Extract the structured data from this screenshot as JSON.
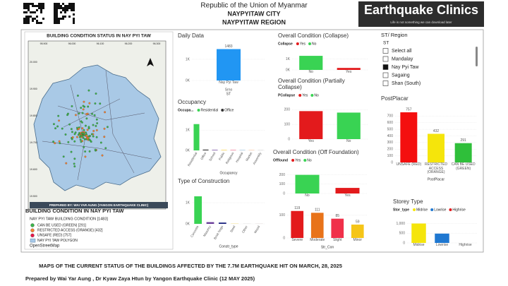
{
  "header": {
    "line1": "Republic of the Union of Myanmar",
    "line2": "NAYPYITAW CITY",
    "line3": "NAYPYITAW REGION"
  },
  "brand": {
    "title": "Earthquake Clinics",
    "tagline": "Life is not something we can download later"
  },
  "map": {
    "title": "BUILDING CONDITION STATUS IN NAY PYI TAW",
    "credit": "PREPARED BY: WAI YAR AUNG (YANGON EARTHQUAKE CLINIC)",
    "lon_labels": [
      "95.900",
      "96.000",
      "96.100",
      "96.200",
      "96.300"
    ],
    "lat_labels": [
      "20.000",
      "19.900",
      "19.800",
      "19.700",
      "19.600",
      "19.500"
    ]
  },
  "legend": {
    "title": "BUILDING CONDITION IN NAY PYI TAW",
    "layer": "NAY PYI TAW BUILDING CONDITION [1483]",
    "items": [
      {
        "label": "CAN BE USED (GREEN) [291]",
        "color": "#3cb44b"
      },
      {
        "label": "RESTRICTED ACCESS (ORANGE) [432]",
        "color": "#f58231"
      },
      {
        "label": "UNSAFE (RED) [757]",
        "color": "#e6194b"
      },
      {
        "label": "NAY PYI TAW POLYGON",
        "color": "#a6c8e8"
      }
    ],
    "basemap": "OpenStreetMap"
  },
  "charts": [
    {
      "type": "bar",
      "title": "Daily Data",
      "categories": [
        "Nay Pyi Taw"
      ],
      "xsub": "Srno",
      "xlabel": "ST",
      "values": [
        1483
      ],
      "colors": [
        "#2196f3"
      ],
      "data_labels": true,
      "ylim": [
        0,
        1600
      ],
      "yticks": [
        {
          "value": 0,
          "label": "0K"
        },
        {
          "value": 1000,
          "label": "1K"
        }
      ]
    },
    {
      "type": "bar",
      "title": "Occupancy",
      "legend": {
        "title": "Occupa...",
        "items": [
          {
            "name": "Residential",
            "color": "#39d353"
          },
          {
            "name": "Office",
            "color": "#333333"
          }
        ]
      },
      "categories": [
        "Residential",
        "Office",
        "School",
        "Public",
        "Religious",
        "Hospital",
        "Market",
        "Assembly"
      ],
      "values": [
        1300,
        40,
        25,
        20,
        15,
        10,
        10,
        8
      ],
      "colors": [
        "#39d353",
        "#333333",
        "#6a3d9a",
        "#f5c518",
        "#e6194b",
        "#1f78b4",
        "#f58231",
        "#999999"
      ],
      "rotate_labels": true,
      "xlabel": "Occupancy",
      "ylim": [
        0,
        1500
      ],
      "yticks": [
        {
          "value": 0,
          "label": "0K"
        },
        {
          "value": 1000,
          "label": "1K"
        }
      ]
    },
    {
      "type": "bar",
      "title": "Type of Construction",
      "categories": [
        "Concrete",
        "Masonry",
        "Brick Nogs",
        "Steel",
        "Other",
        "Wood"
      ],
      "values": [
        1300,
        80,
        60,
        8,
        4,
        3
      ],
      "colors": [
        "#39d353",
        "#6a3d9a",
        "#1a237e",
        "#f5c518",
        "#999999",
        "#8d6e63"
      ],
      "rotate_labels": true,
      "xlabel": "Constr_type",
      "ylim": [
        0,
        1500
      ],
      "yticks": [
        {
          "value": 0,
          "label": "0K"
        },
        {
          "value": 1000,
          "label": "1K"
        }
      ]
    },
    {
      "type": "bar",
      "title": "Overall Condition (Collapse)",
      "legend": {
        "title": "Collapse",
        "items": [
          {
            "name": "Yes",
            "color": "#e31a1c"
          },
          {
            "name": "No",
            "color": "#39d353"
          }
        ]
      },
      "categories": [
        "No",
        "Yes"
      ],
      "values": [
        1300,
        183
      ],
      "colors": [
        "#39d353",
        "#e31a1c"
      ],
      "ylim": [
        0,
        1500
      ],
      "yticks": [
        {
          "value": 0,
          "label": "0K"
        },
        {
          "value": 1000,
          "label": "1K"
        }
      ]
    },
    {
      "type": "bar",
      "title": "Overall Condition (Partially Collapse)",
      "legend": {
        "title": "PCollapse",
        "items": [
          {
            "name": "Yes",
            "color": "#e31a1c"
          },
          {
            "name": "No",
            "color": "#39d353"
          }
        ]
      },
      "categories": [
        "Yes",
        "No"
      ],
      "values": [
        190,
        180
      ],
      "colors": [
        "#e31a1c",
        "#39d353"
      ],
      "ylim": [
        0,
        230
      ],
      "yticks": [
        0,
        100,
        200
      ]
    },
    {
      "type": "bar",
      "title": "Overall Condition (Off Foundation)",
      "legend": {
        "title": "Offfound",
        "items": [
          {
            "name": "Yes",
            "color": "#e31a1c"
          },
          {
            "name": "No",
            "color": "#39d353"
          }
        ]
      },
      "categories": [
        "No",
        "Yes"
      ],
      "values": [
        200,
        60
      ],
      "colors": [
        "#39d353",
        "#e31a1c"
      ],
      "ylim": [
        0,
        250
      ],
      "yticks": [
        0,
        100,
        200
      ]
    },
    {
      "type": "bar",
      "categories": [
        "Severe",
        "Moderate",
        "Slight",
        "Minor"
      ],
      "values": [
        119,
        111,
        85,
        59
      ],
      "colors": [
        "#e31a1c",
        "#e8731a",
        "#f0304a",
        "#f5c518"
      ],
      "data_labels": true,
      "xlabel": "Str_Con",
      "ylim": [
        0,
        140
      ],
      "yticks": [
        0,
        100
      ]
    },
    {
      "type": "bar",
      "title": "PostPlacar",
      "categories": [
        "UNSAFE (RED)",
        "RESTRICTED ACCESS (ORANGE)",
        "CAN BE USED (GREEN)"
      ],
      "values": [
        757,
        432,
        291
      ],
      "colors": [
        "#f40f0f",
        "#f5e50b",
        "#2fbf3a"
      ],
      "data_labels": true,
      "xlabel": "PostPlacar",
      "ylim": [
        0,
        800
      ],
      "yticks": [
        0,
        100,
        200,
        300,
        400,
        500,
        600,
        700
      ]
    },
    {
      "type": "bar",
      "title": "Storey Type",
      "legend": {
        "title": "Stor_type",
        "items": [
          {
            "name": "Midrise",
            "color": "#f5e50b"
          },
          {
            "name": "Lowrise",
            "color": "#1f78d1"
          },
          {
            "name": "Highrise",
            "color": "#e31a1c"
          }
        ]
      },
      "categories": [
        "Midrise",
        "Lowrise",
        "Highrise"
      ],
      "values": [
        1000,
        480,
        0
      ],
      "colors": [
        "#f5e50b",
        "#1f78d1",
        "#e31a1c"
      ],
      "ylim": [
        0,
        1200
      ],
      "yticks": [
        0,
        500,
        {
          "value": 1000,
          "label": "1,000"
        }
      ]
    }
  ],
  "slicer": {
    "title": "ST/ Region",
    "field": "ST",
    "items": [
      {
        "label": "Select all",
        "checked": false
      },
      {
        "label": "Mandalay",
        "checked": false
      },
      {
        "label": "Nay Pyi Taw",
        "checked": true
      },
      {
        "label": "Sagaing",
        "checked": false
      },
      {
        "label": "Shan (South)",
        "checked": false
      }
    ]
  },
  "footer": {
    "line1": "MAPS OF THE CURRENT STATUS OF THE BUILDINGS AFFECTED BY THE 7.7M EARTHQUAKE HIT ON MARCH, 28, 2025",
    "line2": "Prepared by Wai Yar Aung , Dr Kyaw Zaya Htun by Yangon Earthquake Clinic (12 MAY 2025)"
  }
}
